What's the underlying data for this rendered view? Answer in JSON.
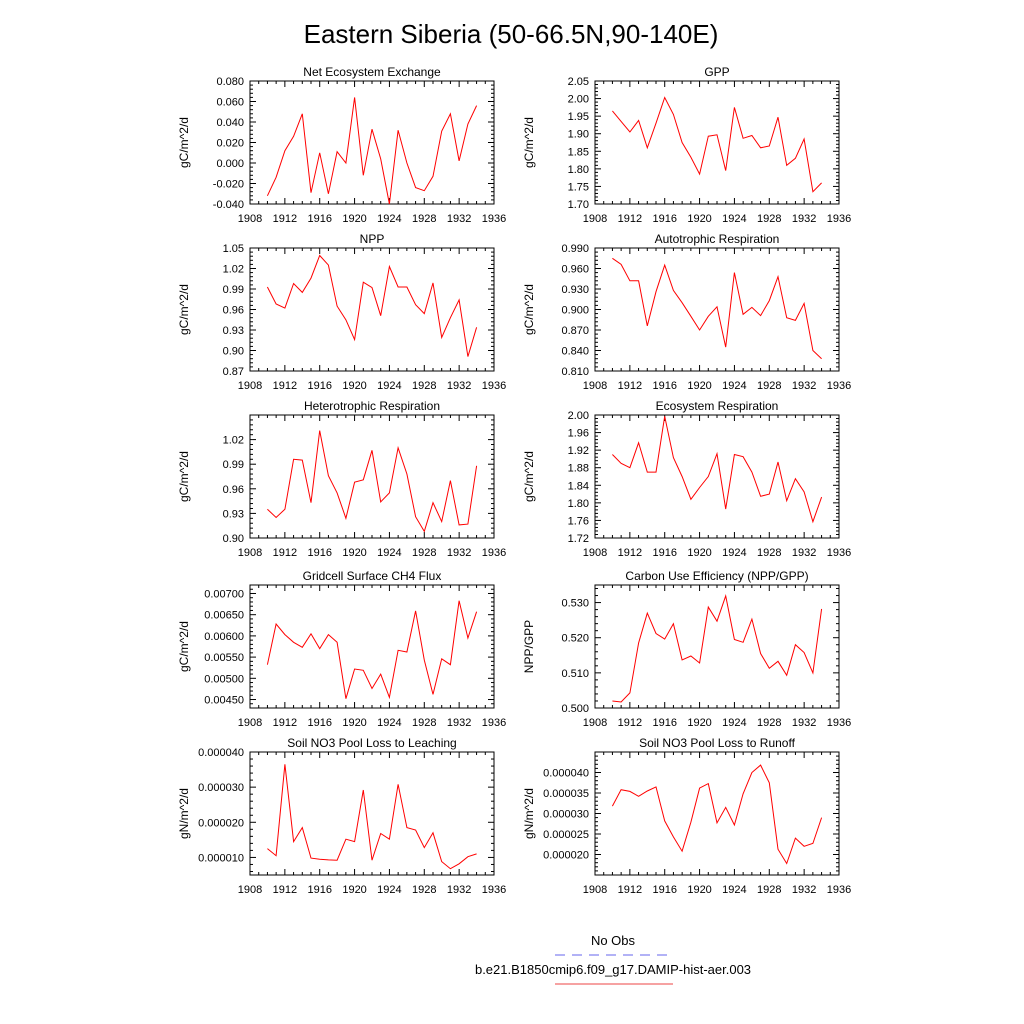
{
  "title": "Eastern Siberia (50-66.5N,90-140E)",
  "legend": {
    "entries": [
      {
        "label": "No Obs",
        "color": "#6666ee",
        "dash": true
      },
      {
        "label": "b.e21.B1850cmip6.f09_g17.DAMIP-hist-aer.003",
        "color": "#ee4444",
        "dash": false
      }
    ]
  },
  "colors": {
    "series": "#ff0000",
    "axis": "#000000"
  },
  "chart_data": [
    {
      "type": "line",
      "title": "Net Ecosystem Exchange",
      "xlabel": "",
      "ylabel": "gC/m^2/d",
      "xlim": [
        1908,
        1936
      ],
      "ylim": [
        -0.04,
        0.08
      ],
      "xticks": [
        "1908",
        "1912",
        "1916",
        "1920",
        "1924",
        "1928",
        "1932",
        "1936"
      ],
      "yticks": [
        "-0.040",
        "-0.020",
        "0.000",
        "0.020",
        "0.040",
        "0.060",
        "0.080"
      ],
      "yticks_values": [
        -0.04,
        -0.02,
        0,
        0.02,
        0.04,
        0.06,
        0.08
      ],
      "x": [
        1910,
        1911,
        1912,
        1913,
        1914,
        1915,
        1916,
        1917,
        1918,
        1919,
        1920,
        1921,
        1922,
        1923,
        1924,
        1925,
        1926,
        1927,
        1928,
        1929,
        1930,
        1931,
        1932,
        1933,
        1934
      ],
      "values": [
        -0.032,
        -0.014,
        0.012,
        0.026,
        0.048,
        -0.029,
        0.01,
        -0.03,
        0.011,
        0.0,
        0.064,
        -0.012,
        0.033,
        0.004,
        -0.04,
        0.032,
        0.0,
        -0.024,
        -0.027,
        -0.013,
        0.031,
        0.048,
        0.002,
        0.038,
        0.056
      ]
    },
    {
      "type": "line",
      "title": "GPP",
      "xlabel": "",
      "ylabel": "gC/m^2/d",
      "xlim": [
        1908,
        1936
      ],
      "ylim": [
        1.7,
        2.05
      ],
      "xticks": [
        "1908",
        "1912",
        "1916",
        "1920",
        "1924",
        "1928",
        "1932",
        "1936"
      ],
      "yticks": [
        "1.70",
        "1.75",
        "1.80",
        "1.85",
        "1.90",
        "1.95",
        "2.00",
        "2.05"
      ],
      "yticks_values": [
        1.7,
        1.75,
        1.8,
        1.85,
        1.9,
        1.95,
        2.0,
        2.05
      ],
      "x": [
        1910,
        1911,
        1912,
        1913,
        1914,
        1915,
        1916,
        1917,
        1918,
        1919,
        1920,
        1921,
        1922,
        1923,
        1924,
        1925,
        1926,
        1927,
        1928,
        1929,
        1930,
        1931,
        1932,
        1933,
        1934
      ],
      "values": [
        1.965,
        1.935,
        1.905,
        1.938,
        1.86,
        1.93,
        2.003,
        1.955,
        1.875,
        1.833,
        1.785,
        1.893,
        1.897,
        1.795,
        1.975,
        1.887,
        1.895,
        1.86,
        1.865,
        1.947,
        1.81,
        1.83,
        1.885,
        1.735,
        1.76
      ]
    },
    {
      "type": "line",
      "title": "NPP",
      "xlabel": "",
      "ylabel": "gC/m^2/d",
      "xlim": [
        1908,
        1936
      ],
      "ylim": [
        0.87,
        1.05
      ],
      "xticks": [
        "1908",
        "1912",
        "1916",
        "1920",
        "1924",
        "1928",
        "1932",
        "1936"
      ],
      "yticks": [
        "0.87",
        "0.90",
        "0.93",
        "0.96",
        "0.99",
        "1.02",
        "1.05"
      ],
      "yticks_values": [
        0.87,
        0.9,
        0.93,
        0.96,
        0.99,
        1.02,
        1.05
      ],
      "x": [
        1910,
        1911,
        1912,
        1913,
        1914,
        1915,
        1916,
        1917,
        1918,
        1919,
        1920,
        1921,
        1922,
        1923,
        1924,
        1925,
        1926,
        1927,
        1928,
        1929,
        1930,
        1931,
        1932,
        1933,
        1934
      ],
      "values": [
        0.993,
        0.968,
        0.962,
        0.998,
        0.985,
        1.006,
        1.039,
        1.025,
        0.965,
        0.945,
        0.916,
        1.0,
        0.992,
        0.951,
        1.023,
        0.993,
        0.993,
        0.967,
        0.954,
        0.999,
        0.919,
        0.948,
        0.974,
        0.891,
        0.934
      ]
    },
    {
      "type": "line",
      "title": "Autotrophic Respiration",
      "xlabel": "",
      "ylabel": "gC/m^2/d",
      "xlim": [
        1908,
        1936
      ],
      "ylim": [
        0.81,
        0.99
      ],
      "xticks": [
        "1908",
        "1912",
        "1916",
        "1920",
        "1924",
        "1928",
        "1932",
        "1936"
      ],
      "yticks": [
        "0.810",
        "0.840",
        "0.870",
        "0.900",
        "0.930",
        "0.960",
        "0.990"
      ],
      "yticks_values": [
        0.81,
        0.84,
        0.87,
        0.9,
        0.93,
        0.96,
        0.99
      ],
      "x": [
        1910,
        1911,
        1912,
        1913,
        1914,
        1915,
        1916,
        1917,
        1918,
        1919,
        1920,
        1921,
        1922,
        1923,
        1924,
        1925,
        1926,
        1927,
        1928,
        1929,
        1930,
        1931,
        1932,
        1933,
        1934
      ],
      "values": [
        0.975,
        0.966,
        0.942,
        0.942,
        0.876,
        0.926,
        0.965,
        0.928,
        0.91,
        0.89,
        0.87,
        0.89,
        0.904,
        0.845,
        0.954,
        0.893,
        0.903,
        0.891,
        0.913,
        0.948,
        0.888,
        0.884,
        0.909,
        0.84,
        0.828
      ]
    },
    {
      "type": "line",
      "title": "Heterotrophic Respiration",
      "xlabel": "",
      "ylabel": "gC/m^2/d",
      "xlim": [
        1908,
        1936
      ],
      "ylim": [
        0.9,
        1.05
      ],
      "xticks": [
        "1908",
        "1912",
        "1916",
        "1920",
        "1924",
        "1928",
        "1932",
        "1936"
      ],
      "yticks": [
        "0.90",
        "0.93",
        "0.96",
        "0.99",
        "1.02"
      ],
      "yticks_values": [
        0.9,
        0.93,
        0.96,
        0.99,
        1.02
      ],
      "x": [
        1910,
        1911,
        1912,
        1913,
        1914,
        1915,
        1916,
        1917,
        1918,
        1919,
        1920,
        1921,
        1922,
        1923,
        1924,
        1925,
        1926,
        1927,
        1928,
        1929,
        1930,
        1931,
        1932,
        1933,
        1934
      ],
      "values": [
        0.935,
        0.925,
        0.935,
        0.996,
        0.995,
        0.943,
        1.031,
        0.976,
        0.955,
        0.924,
        0.968,
        0.971,
        1.007,
        0.944,
        0.955,
        1.01,
        0.978,
        0.926,
        0.908,
        0.943,
        0.92,
        0.97,
        0.916,
        0.917,
        0.988
      ]
    },
    {
      "type": "line",
      "title": "Ecosystem Respiration",
      "xlabel": "",
      "ylabel": "gC/m^2/d",
      "xlim": [
        1908,
        1936
      ],
      "ylim": [
        1.72,
        2.0
      ],
      "xticks": [
        "1908",
        "1912",
        "1916",
        "1920",
        "1924",
        "1928",
        "1932",
        "1936"
      ],
      "yticks": [
        "1.72",
        "1.76",
        "1.80",
        "1.84",
        "1.88",
        "1.92",
        "1.96",
        "2.00"
      ],
      "yticks_values": [
        1.72,
        1.76,
        1.8,
        1.84,
        1.88,
        1.92,
        1.96,
        2.0
      ],
      "x": [
        1910,
        1911,
        1912,
        1913,
        1914,
        1915,
        1916,
        1917,
        1918,
        1919,
        1920,
        1921,
        1922,
        1923,
        1924,
        1925,
        1926,
        1927,
        1928,
        1929,
        1930,
        1931,
        1932,
        1933,
        1934
      ],
      "values": [
        1.91,
        1.89,
        1.88,
        1.937,
        1.87,
        1.87,
        1.997,
        1.903,
        1.86,
        1.808,
        1.835,
        1.86,
        1.912,
        1.786,
        1.91,
        1.905,
        1.87,
        1.815,
        1.82,
        1.893,
        1.805,
        1.855,
        1.825,
        1.757,
        1.813
      ]
    },
    {
      "type": "line",
      "title": "Gridcell Surface CH4 Flux",
      "xlabel": "",
      "ylabel": "gC/m^2/d",
      "xlim": [
        1908,
        1936
      ],
      "ylim": [
        0.0043,
        0.0072
      ],
      "xticks": [
        "1908",
        "1912",
        "1916",
        "1920",
        "1924",
        "1928",
        "1932",
        "1936"
      ],
      "yticks": [
        "0.00450",
        "0.00500",
        "0.00550",
        "0.00600",
        "0.00650",
        "0.00700"
      ],
      "yticks_values": [
        0.0045,
        0.005,
        0.0055,
        0.006,
        0.0065,
        0.007
      ],
      "x": [
        1910,
        1911,
        1912,
        1913,
        1914,
        1915,
        1916,
        1917,
        1918,
        1919,
        1920,
        1921,
        1922,
        1923,
        1924,
        1925,
        1926,
        1927,
        1928,
        1929,
        1930,
        1931,
        1932,
        1933,
        1934
      ],
      "values": [
        0.00532,
        0.00628,
        0.00603,
        0.00585,
        0.00573,
        0.00605,
        0.0057,
        0.00603,
        0.00585,
        0.00452,
        0.00522,
        0.00519,
        0.00476,
        0.0051,
        0.00455,
        0.00566,
        0.00562,
        0.00659,
        0.00543,
        0.00462,
        0.00546,
        0.00532,
        0.00683,
        0.00595,
        0.00657
      ]
    },
    {
      "type": "line",
      "title": "Carbon Use Efficiency (NPP/GPP)",
      "xlabel": "",
      "ylabel": "NPP/GPP",
      "xlim": [
        1908,
        1936
      ],
      "ylim": [
        0.5,
        0.535
      ],
      "xticks": [
        "1908",
        "1912",
        "1916",
        "1920",
        "1924",
        "1928",
        "1932",
        "1936"
      ],
      "yticks": [
        "0.500",
        "0.510",
        "0.520",
        "0.530"
      ],
      "yticks_values": [
        0.5,
        0.51,
        0.52,
        0.53
      ],
      "x": [
        1910,
        1911,
        1912,
        1913,
        1914,
        1915,
        1916,
        1917,
        1918,
        1919,
        1920,
        1921,
        1922,
        1923,
        1924,
        1925,
        1926,
        1927,
        1928,
        1929,
        1930,
        1931,
        1932,
        1933,
        1934
      ],
      "values": [
        0.502,
        0.5017,
        0.5043,
        0.5185,
        0.527,
        0.5212,
        0.5196,
        0.524,
        0.5137,
        0.5148,
        0.5128,
        0.5287,
        0.5247,
        0.5319,
        0.5195,
        0.5187,
        0.5253,
        0.5155,
        0.5113,
        0.5133,
        0.5093,
        0.518,
        0.5158,
        0.51,
        0.5282
      ]
    },
    {
      "type": "line",
      "title": "Soil NO3 Pool Loss to Leaching",
      "xlabel": "",
      "ylabel": "gN/m^2/d",
      "xlim": [
        1908,
        1936
      ],
      "ylim": [
        5e-06,
        4e-05
      ],
      "xticks": [
        "1908",
        "1912",
        "1916",
        "1920",
        "1924",
        "1928",
        "1932",
        "1936"
      ],
      "yticks": [
        "0.000010",
        "0.000020",
        "0.000030",
        "0.000040"
      ],
      "yticks_values": [
        1e-05,
        2e-05,
        3e-05,
        4e-05
      ],
      "x": [
        1910,
        1911,
        1912,
        1913,
        1914,
        1915,
        1916,
        1917,
        1918,
        1919,
        1920,
        1921,
        1922,
        1923,
        1924,
        1925,
        1926,
        1927,
        1928,
        1929,
        1930,
        1931,
        1932,
        1933,
        1934
      ],
      "values": [
        1.25e-05,
        1.05e-05,
        3.65e-05,
        1.45e-05,
        1.85e-05,
        9.8e-06,
        9.5e-06,
        9.3e-06,
        9.2e-06,
        1.52e-05,
        1.45e-05,
        2.92e-05,
        9.2e-06,
        1.68e-05,
        1.52e-05,
        3.08e-05,
        1.85e-05,
        1.78e-05,
        1.28e-05,
        1.7e-05,
        8.8e-06,
        6.8e-06,
        8.2e-06,
        1.02e-05,
        1.1e-05
      ]
    },
    {
      "type": "line",
      "title": "Soil NO3 Pool Loss to Runoff",
      "xlabel": "",
      "ylabel": "gN/m^2/d",
      "xlim": [
        1908,
        1936
      ],
      "ylim": [
        1.5e-05,
        4.5e-05
      ],
      "xticks": [
        "1908",
        "1912",
        "1916",
        "1920",
        "1924",
        "1928",
        "1932",
        "1936"
      ],
      "yticks": [
        "0.000020",
        "0.000025",
        "0.000030",
        "0.000035",
        "0.000040"
      ],
      "yticks_values": [
        2e-05,
        2.5e-05,
        3e-05,
        3.5e-05,
        4e-05
      ],
      "x": [
        1910,
        1911,
        1912,
        1913,
        1914,
        1915,
        1916,
        1917,
        1918,
        1919,
        1920,
        1921,
        1922,
        1923,
        1924,
        1925,
        1926,
        1927,
        1928,
        1929,
        1930,
        1931,
        1932,
        1933,
        1934
      ],
      "values": [
        3.18e-05,
        3.58e-05,
        3.54e-05,
        3.42e-05,
        3.55e-05,
        3.65e-05,
        2.82e-05,
        2.43e-05,
        2.08e-05,
        2.79e-05,
        3.62e-05,
        3.73e-05,
        2.77e-05,
        3.15e-05,
        2.72e-05,
        3.48e-05,
        4e-05,
        4.18e-05,
        3.75e-05,
        2.13e-05,
        1.78e-05,
        2.4e-05,
        2.2e-05,
        2.27e-05,
        2.9e-05
      ]
    }
  ]
}
